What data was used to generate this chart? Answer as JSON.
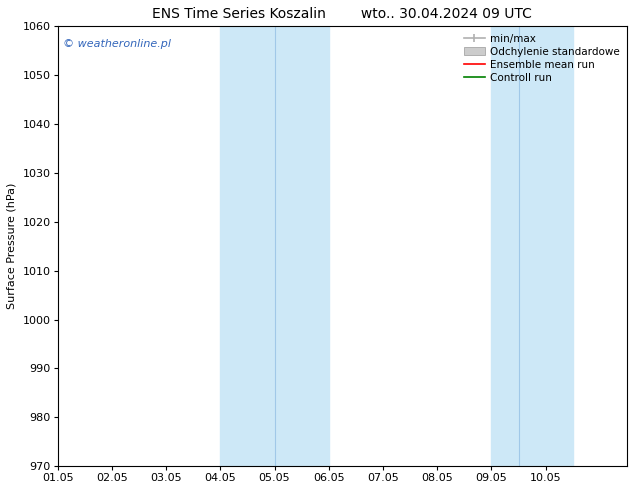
{
  "title_left": "ENS Time Series Koszalin",
  "title_right": "wto.. 30.04.2024 09 UTC",
  "ylabel": "Surface Pressure (hPa)",
  "ylim": [
    970,
    1060
  ],
  "yticks": [
    970,
    980,
    990,
    1000,
    1010,
    1020,
    1030,
    1040,
    1050,
    1060
  ],
  "xlim": [
    0.0,
    10.5
  ],
  "xtick_positions": [
    0,
    1,
    2,
    3,
    4,
    5,
    6,
    7,
    8,
    9
  ],
  "xtick_labels": [
    "01.05",
    "02.05",
    "03.05",
    "04.05",
    "05.05",
    "06.05",
    "07.05",
    "08.05",
    "09.05",
    "10.05"
  ],
  "shaded_bands": [
    {
      "xmin": 3.0,
      "xmax": 5.0,
      "color": "#cfe2f3"
    },
    {
      "xmin": 4.0,
      "xmax": 5.0,
      "color": "#cfe2f3"
    },
    {
      "xmin": 8.0,
      "xmax": 9.5,
      "color": "#cfe2f3"
    }
  ],
  "divider_lines": [
    {
      "x": 4.0,
      "color": "#aacce8"
    },
    {
      "x": 5.0,
      "color": "#aacce8"
    },
    {
      "x": 8.5,
      "color": "#aacce8"
    },
    {
      "x": 9.5,
      "color": "#aacce8"
    }
  ],
  "legend_entries": [
    {
      "label": "min/max",
      "color": "#b0b0b0",
      "lw": 1.2,
      "style": "line_with_cap"
    },
    {
      "label": "Odchylenie standardowe",
      "color": "#cccccc",
      "lw": 7,
      "style": "thick"
    },
    {
      "label": "Ensemble mean run",
      "color": "red",
      "lw": 1.2,
      "style": "line"
    },
    {
      "label": "Controll run",
      "color": "green",
      "lw": 1.2,
      "style": "line"
    }
  ],
  "watermark": "© weatheronline.pl",
  "watermark_color": "#3366bb",
  "background_color": "#ffffff",
  "title_fontsize": 10,
  "axis_label_fontsize": 8,
  "tick_fontsize": 8,
  "legend_fontsize": 7.5
}
